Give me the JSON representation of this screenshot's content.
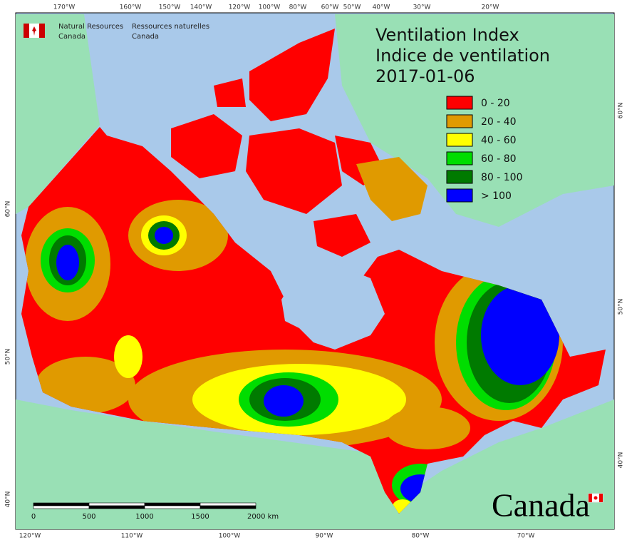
{
  "header": {
    "agency_en": [
      "Natural Resources",
      "Canada"
    ],
    "agency_fr": [
      "Ressources naturelles",
      "Canada"
    ]
  },
  "title": [
    "Ventilation Index",
    "Indice de ventilation",
    "2017-01-06"
  ],
  "legend": [
    {
      "label": "0 - 20",
      "color": "#ff0000"
    },
    {
      "label": "20 - 40",
      "color": "#e09a00"
    },
    {
      "label": "40 - 60",
      "color": "#ffff00"
    },
    {
      "label": "60 - 80",
      "color": "#00dd00"
    },
    {
      "label": "80 - 100",
      "color": "#007a00"
    },
    {
      "label": "> 100",
      "color": "#0000ff"
    }
  ],
  "top_longitudes": [
    "170°W",
    "160°W",
    "150°W",
    "140°W",
    "120°W",
    "100°W",
    "80°W",
    "60°W",
    "50°W",
    "40°W",
    "30°W",
    "20°W"
  ],
  "bottom_longitudes": [
    "120°W",
    "110°W",
    "100°W",
    "90°W",
    "80°W",
    "70°W"
  ],
  "left_latitudes": [
    "60°N",
    "50°N",
    "40°N"
  ],
  "right_latitudes": [
    "60°N",
    "50°N",
    "40°N"
  ],
  "scale_bar": [
    "0",
    "500",
    "1000",
    "1500",
    "2000 km"
  ],
  "wordmark": "Canada"
}
